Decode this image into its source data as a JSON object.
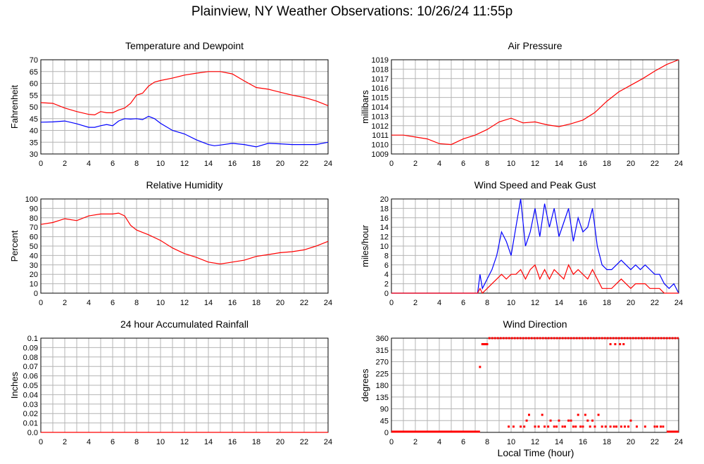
{
  "title": "Plainview, NY Weather Observations: 10/26/24 11:55p",
  "x_axis_title": "Local Time (hour)",
  "colors": {
    "red": "#ff0000",
    "blue": "#0000ff",
    "grid": "#b4b4b4"
  },
  "chart_data": [
    {
      "id": "temp",
      "type": "line",
      "title": "Temperature and Dewpoint",
      "ylabel": "Fahrenheit",
      "xlabel": "",
      "xlim": [
        0,
        24
      ],
      "ylim": [
        30,
        70
      ],
      "xticks": [
        "0",
        "2",
        "4",
        "6",
        "8",
        "10",
        "12",
        "14",
        "16",
        "18",
        "20",
        "22",
        "24"
      ],
      "yticks": [
        "30",
        "35",
        "40",
        "45",
        "50",
        "55",
        "60",
        "65",
        "70"
      ],
      "grid": true,
      "x": [
        0,
        1,
        2,
        3,
        4,
        4.5,
        5,
        5.5,
        6,
        6.5,
        7,
        7.5,
        8,
        8.5,
        9,
        9.5,
        10,
        11,
        12,
        13,
        14,
        14.5,
        15,
        16,
        17,
        18,
        19,
        20,
        21,
        22,
        23,
        24
      ],
      "series": [
        {
          "color": "#ff0000",
          "values": [
            51.8,
            51.5,
            49.5,
            48.0,
            46.8,
            46.6,
            48.0,
            47.5,
            47.5,
            48.7,
            49.5,
            51.5,
            55.0,
            55.8,
            58.8,
            60.5,
            61.2,
            62.2,
            63.5,
            64.3,
            65.0,
            65.0,
            65.0,
            64.0,
            61.0,
            58.2,
            57.5,
            56.2,
            55.0,
            54.0,
            52.5,
            50.5
          ]
        },
        {
          "color": "#0000ff",
          "values": [
            43.5,
            43.6,
            44.0,
            42.8,
            41.3,
            41.3,
            42.0,
            42.5,
            42.0,
            44.0,
            45.0,
            44.8,
            45.0,
            44.6,
            46.0,
            45.0,
            43.0,
            40.0,
            38.5,
            36.0,
            34.0,
            33.5,
            33.8,
            34.5,
            34.0,
            33.0,
            34.5,
            34.3,
            34.0,
            34.0,
            34.0,
            35.0
          ]
        }
      ]
    },
    {
      "id": "pressure",
      "type": "line",
      "title": "Air Pressure",
      "ylabel": "millibars",
      "xlabel": "",
      "xlim": [
        0,
        24
      ],
      "ylim": [
        1009,
        1019
      ],
      "xticks": [
        "0",
        "2",
        "4",
        "6",
        "8",
        "10",
        "12",
        "14",
        "16",
        "18",
        "20",
        "22",
        "24"
      ],
      "yticks": [
        "1009",
        "1010",
        "1011",
        "1012",
        "1013",
        "1014",
        "1015",
        "1016",
        "1017",
        "1018",
        "1019"
      ],
      "grid": true,
      "x": [
        0,
        1,
        2,
        3,
        4,
        5,
        6,
        7,
        8,
        9,
        10,
        11,
        12,
        13,
        14,
        15,
        16,
        17,
        18,
        19,
        20,
        21,
        22,
        23,
        24
      ],
      "series": [
        {
          "color": "#ff0000",
          "values": [
            1011.0,
            1011.0,
            1010.8,
            1010.6,
            1010.1,
            1010.0,
            1010.6,
            1011.0,
            1011.6,
            1012.4,
            1012.8,
            1012.3,
            1012.4,
            1012.1,
            1011.9,
            1012.2,
            1012.6,
            1013.4,
            1014.6,
            1015.6,
            1016.3,
            1017.0,
            1017.8,
            1018.5,
            1019.0
          ]
        }
      ]
    },
    {
      "id": "humidity",
      "type": "line",
      "title": "Relative Humidity",
      "ylabel": "Percent",
      "xlabel": "",
      "xlim": [
        0,
        24
      ],
      "ylim": [
        0,
        100
      ],
      "xticks": [
        "0",
        "2",
        "4",
        "6",
        "8",
        "10",
        "12",
        "14",
        "16",
        "18",
        "20",
        "22",
        "24"
      ],
      "yticks": [
        "0",
        "10",
        "20",
        "30",
        "40",
        "50",
        "60",
        "70",
        "80",
        "90",
        "100"
      ],
      "grid": true,
      "x": [
        0,
        1,
        2,
        3,
        4,
        5,
        6,
        6.5,
        7,
        7.5,
        8,
        9,
        10,
        11,
        12,
        13,
        14,
        15,
        16,
        17,
        18,
        19,
        20,
        21,
        22,
        23,
        24
      ],
      "series": [
        {
          "color": "#ff0000",
          "values": [
            73,
            75,
            79,
            77,
            82,
            84,
            84,
            85,
            82,
            72,
            67,
            62,
            56,
            48,
            42,
            38,
            33,
            31,
            33,
            35,
            39,
            41,
            43,
            44,
            46,
            50,
            55
          ]
        }
      ]
    },
    {
      "id": "wind",
      "type": "line",
      "title": "Wind Speed and Peak Gust",
      "ylabel": "miles/hour",
      "xlabel": "",
      "xlim": [
        0,
        24
      ],
      "ylim": [
        0,
        20
      ],
      "xticks": [
        "0",
        "2",
        "4",
        "6",
        "8",
        "10",
        "12",
        "14",
        "16",
        "18",
        "20",
        "22",
        "24"
      ],
      "yticks": [
        "0",
        "2",
        "4",
        "6",
        "8",
        "10",
        "12",
        "14",
        "16",
        "18",
        "20"
      ],
      "grid": true,
      "x": [
        0,
        7.2,
        7.4,
        7.6,
        8,
        8.4,
        8.8,
        9.2,
        9.6,
        10,
        10.4,
        10.8,
        11.2,
        11.6,
        12,
        12.4,
        12.8,
        13.2,
        13.6,
        14,
        14.4,
        14.8,
        15.2,
        15.6,
        16,
        16.4,
        16.8,
        17.2,
        17.6,
        18,
        18.4,
        18.8,
        19.2,
        19.6,
        20,
        20.4,
        20.8,
        21.2,
        21.6,
        22,
        22.4,
        22.8,
        23.2,
        23.6,
        24
      ],
      "series": [
        {
          "color": "#0000ff",
          "values": [
            0,
            0,
            4,
            1,
            3,
            5,
            8,
            13,
            11,
            8,
            14,
            20,
            10,
            13,
            18,
            12,
            19,
            14,
            18,
            12,
            15,
            18,
            11,
            16,
            13,
            14,
            18,
            10,
            6,
            5,
            5,
            6,
            7,
            6,
            5,
            6,
            5,
            6,
            5,
            4,
            4,
            2,
            1,
            2,
            0
          ]
        },
        {
          "color": "#ff0000",
          "values": [
            0,
            0,
            1,
            0,
            1,
            2,
            3,
            4,
            3,
            4,
            4,
            5,
            3,
            5,
            6,
            3,
            5,
            3,
            5,
            4,
            3,
            6,
            4,
            5,
            4,
            3,
            5,
            3,
            1,
            1,
            1,
            2,
            3,
            2,
            1,
            2,
            2,
            2,
            1,
            1,
            1,
            0,
            0,
            0,
            0
          ]
        }
      ]
    },
    {
      "id": "rain",
      "type": "line",
      "title": "24 hour Accumulated Rainfall",
      "ylabel": "Inches",
      "xlabel": "",
      "xlim": [
        0,
        24
      ],
      "ylim": [
        0,
        0.1
      ],
      "xticks": [
        "0",
        "2",
        "4",
        "6",
        "8",
        "10",
        "12",
        "14",
        "16",
        "18",
        "20",
        "22",
        "24"
      ],
      "yticks": [
        "0.0",
        "0.01",
        "0.02",
        "0.03",
        "0.04",
        "0.05",
        "0.06",
        "0.07",
        "0.08",
        "0.09",
        "0.1"
      ],
      "grid": true,
      "x": [
        0,
        24
      ],
      "series": [
        {
          "color": "#ff0000",
          "values": [
            0,
            0
          ]
        }
      ]
    },
    {
      "id": "direction",
      "type": "scatter",
      "title": "Wind Direction",
      "ylabel": "degrees",
      "xlabel": "Local Time (hour)",
      "xlim": [
        0,
        24
      ],
      "ylim": [
        0,
        360
      ],
      "xticks": [
        "0",
        "2",
        "4",
        "6",
        "8",
        "10",
        "12",
        "14",
        "16",
        "18",
        "20",
        "22",
        "24"
      ],
      "yticks": [
        "0",
        "45",
        "90",
        "135",
        "180",
        "225",
        "270",
        "315",
        "360"
      ],
      "grid": true,
      "points": {
        "color": "#ff0000",
        "zero_run": [
          [
            0,
            7.4
          ],
          [
            23,
            24
          ]
        ],
        "top_run": [
          [
            8.1,
            24
          ]
        ],
        "x": [
          7.4,
          7.6,
          7.7,
          7.8,
          7.9,
          8.0,
          9.8,
          10.2,
          10.8,
          11.1,
          11.3,
          11.5,
          12.0,
          12.3,
          12.6,
          12.8,
          13.1,
          13.3,
          13.6,
          13.8,
          14.0,
          14.3,
          14.5,
          14.8,
          15.0,
          15.2,
          15.4,
          15.6,
          15.8,
          16.0,
          16.2,
          16.4,
          16.6,
          16.8,
          17.0,
          17.3,
          17.6,
          17.9,
          18.3,
          18.6,
          18.8,
          19.2,
          19.5,
          19.8,
          20.0,
          20.5,
          21.2,
          22.0,
          22.2,
          22.5,
          22.7,
          18.3,
          18.7,
          19.1,
          19.4
        ],
        "y": [
          250,
          337,
          337,
          337,
          337,
          337,
          22,
          22,
          22,
          22,
          45,
          67,
          22,
          22,
          67,
          22,
          22,
          45,
          22,
          22,
          45,
          22,
          22,
          45,
          45,
          22,
          22,
          67,
          22,
          22,
          67,
          45,
          22,
          45,
          22,
          67,
          22,
          22,
          22,
          22,
          22,
          22,
          22,
          22,
          45,
          22,
          22,
          22,
          22,
          22,
          22,
          337,
          337,
          337,
          337
        ]
      }
    }
  ]
}
